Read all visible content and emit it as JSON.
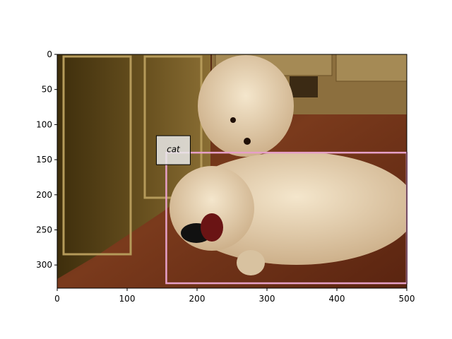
{
  "image": {
    "width": 500,
    "height": 333,
    "description_colors": {
      "floor": "#7a3a1c",
      "cabinet": "#5e4818",
      "dog_fur": "#e8d6b8"
    }
  },
  "axes": {
    "x_ticks": [
      0,
      100,
      200,
      300,
      400,
      500
    ],
    "y_ticks": [
      0,
      50,
      100,
      150,
      200,
      250,
      300
    ],
    "xlim": [
      0,
      500
    ],
    "ylim": [
      333,
      0
    ]
  },
  "annotation": {
    "label": "cat",
    "box": {
      "x1": 156,
      "y1": 140,
      "x2": 500,
      "y2": 326
    },
    "box_color": "#e6a0c8"
  }
}
